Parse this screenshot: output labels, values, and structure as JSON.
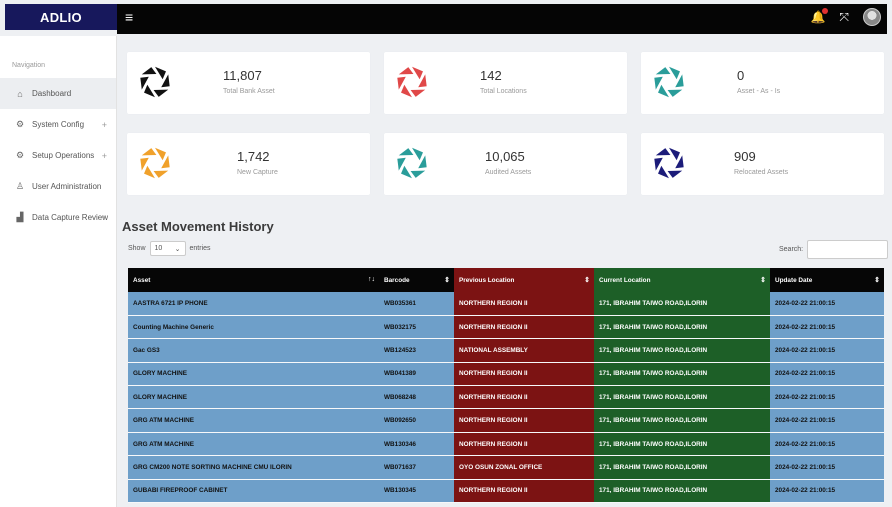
{
  "brand": "ADLIO",
  "colors": {
    "brand_bg": "#17185c",
    "topbar_bg": "#050505",
    "prev_location": "#7c1313",
    "current_location": "#1d5f27",
    "row_blue": "#6e9fc9"
  },
  "header": {
    "menu_icon": "≡",
    "bell_icon": "🔔",
    "expand_icon": "⤧"
  },
  "sidebar": {
    "title": "Navigation",
    "items": [
      {
        "label": "Dashboard",
        "icon": "home-icon",
        "glyph": "⌂",
        "plus": ""
      },
      {
        "label": "System Config",
        "icon": "gear-icon",
        "glyph": "⚙",
        "plus": "+"
      },
      {
        "label": "Setup Operations",
        "icon": "gear-icon",
        "glyph": "⚙",
        "plus": "+"
      },
      {
        "label": "User Administration",
        "icon": "user-icon",
        "glyph": "♙",
        "plus": ""
      },
      {
        "label": "Data Capture Review",
        "icon": "chart-icon",
        "glyph": "▟",
        "plus": "+"
      }
    ]
  },
  "cards": [
    {
      "value": "11,807",
      "label": "Total Bank Asset",
      "color": "#111111"
    },
    {
      "value": "142",
      "label": "Total Locations",
      "color": "#e04848"
    },
    {
      "value": "0",
      "label": "Asset - As - Is",
      "color": "#2a9d9a"
    },
    {
      "value": "1,742",
      "label": "New Capture",
      "color": "#f0a12b"
    },
    {
      "value": "10,065",
      "label": "Audited Assets",
      "color": "#2a9d9a"
    },
    {
      "value": "909",
      "label": "Relocated Assets",
      "color": "#1c1c7a"
    }
  ],
  "section": {
    "title": "Asset Movement History",
    "show_label": "Show",
    "entries_value": "10",
    "entries_label": "entries",
    "search_label": "Search:"
  },
  "table": {
    "headers": [
      "Asset",
      "Barcode",
      "Previous Location",
      "Current Location",
      "Update Date"
    ],
    "rows": [
      [
        "AASTRA 6721 IP PHONE",
        "WB035361",
        "NORTHERN REGION II",
        "171, IBRAHIM TAIWO ROAD,ILORIN",
        "2024-02-22 21:00:15"
      ],
      [
        "Counting Machine Generic",
        "WB032175",
        "NORTHERN REGION II",
        "171, IBRAHIM TAIWO ROAD,ILORIN",
        "2024-02-22 21:00:15"
      ],
      [
        "Gac GS3",
        "WB124523",
        "NATIONAL ASSEMBLY",
        "171, IBRAHIM TAIWO ROAD,ILORIN",
        "2024-02-22 21:00:15"
      ],
      [
        "GLORY MACHINE",
        "WB041389",
        "NORTHERN REGION II",
        "171, IBRAHIM TAIWO ROAD,ILORIN",
        "2024-02-22 21:00:15"
      ],
      [
        "GLORY MACHINE",
        "WB068248",
        "NORTHERN REGION II",
        "171, IBRAHIM TAIWO ROAD,ILORIN",
        "2024-02-22 21:00:15"
      ],
      [
        "GRG ATM MACHINE",
        "WB092650",
        "NORTHERN REGION II",
        "171, IBRAHIM TAIWO ROAD,ILORIN",
        "2024-02-22 21:00:15"
      ],
      [
        "GRG ATM MACHINE",
        "WB130346",
        "NORTHERN REGION II",
        "171, IBRAHIM TAIWO ROAD,ILORIN",
        "2024-02-22 21:00:15"
      ],
      [
        "GRG CM200 NOTE SORTING MACHINE CMU ILORIN",
        "WB071637",
        "OYO OSUN ZONAL OFFICE",
        "171, IBRAHIM TAIWO ROAD,ILORIN",
        "2024-02-22 21:00:15"
      ],
      [
        "GUBABI FIREPROOF CABINET",
        "WB130345",
        "NORTHERN REGION II",
        "171, IBRAHIM TAIWO ROAD,ILORIN",
        "2024-02-22 21:00:15"
      ]
    ]
  }
}
